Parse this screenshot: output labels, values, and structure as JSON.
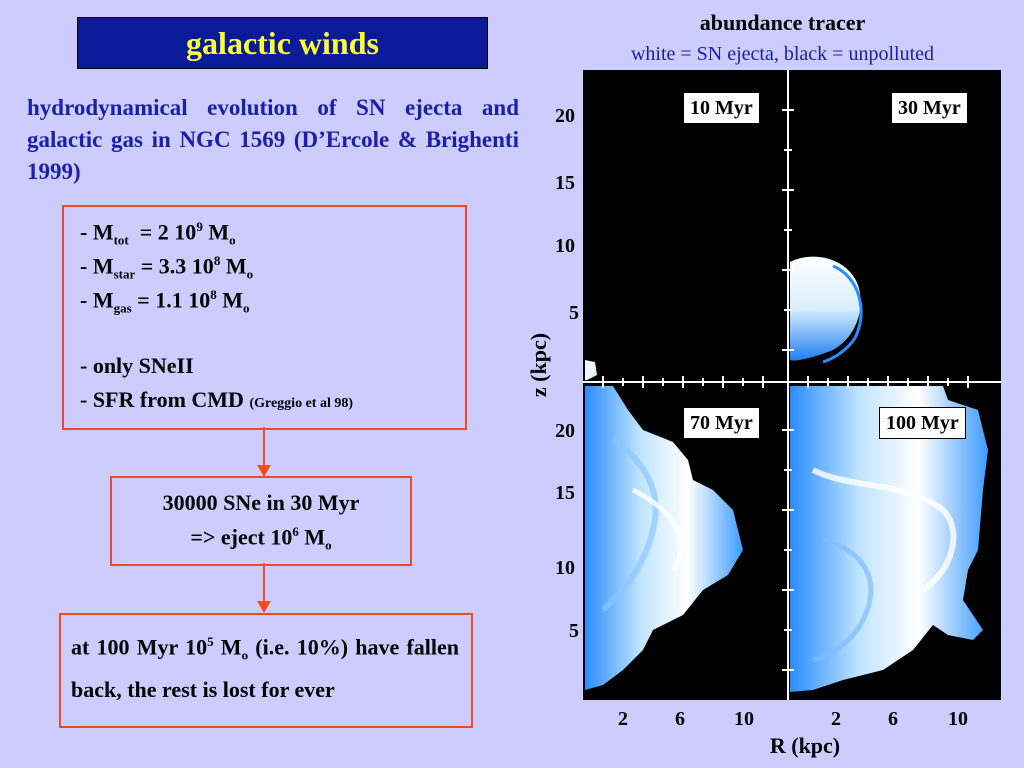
{
  "title": "galactic winds",
  "intro": "hydrodynamical evolution of  SN ejecta and galactic gas in NGC 1569 (D’Ercole & Brighenti 1999)",
  "box1": {
    "mtot": {
      "prefix": "- M",
      "sub": "tot",
      "mid": "  = 2 10",
      "sup": "9",
      "tail": " M",
      "tailsub": "o"
    },
    "mstar": {
      "prefix": "- M",
      "sub": "star",
      "mid": " = 3.3 10",
      "sup": "8",
      "tail": " M",
      "tailsub": "o"
    },
    "mgas": {
      "prefix": "- M",
      "sub": "gas",
      "mid": " = 1.1 10",
      "sup": "8",
      "tail": " M",
      "tailsub": "o"
    },
    "sn_line": "- only SNeII",
    "sfr_line": "- SFR from CMD ",
    "sfr_ref": "(Greggio et al 98)"
  },
  "box2": {
    "line1": "30000 SNe in 30 Myr",
    "line2_pre": "=> eject 10",
    "line2_sup": "6",
    "line2_tail": " M",
    "line2_sub": "o"
  },
  "box3": {
    "pre": "at 100 Myr 10",
    "sup": "5",
    "mid": " M",
    "sub": "o",
    "post": " (i.e. 10%) have fallen back, the rest is lost for ever"
  },
  "plot": {
    "title": "abundance tracer",
    "subtitle": "white = SN ejecta, black = unpolluted",
    "ylabel": "z (kpc)",
    "xlabel": "R (kpc)",
    "yticks": [
      "20",
      "15",
      "10",
      "5"
    ],
    "xticks": [
      "2",
      "6",
      "10"
    ],
    "panels": [
      "10 Myr",
      "30 Myr",
      "70 Myr",
      "100 Myr"
    ]
  },
  "colors": {
    "background": "#ccccff",
    "title_bg": "#0a1a99",
    "title_text": "#ffff33",
    "box_border": "#f24a1a",
    "accent_text": "#1a20a8",
    "gas_blue": "#2a8cff"
  }
}
